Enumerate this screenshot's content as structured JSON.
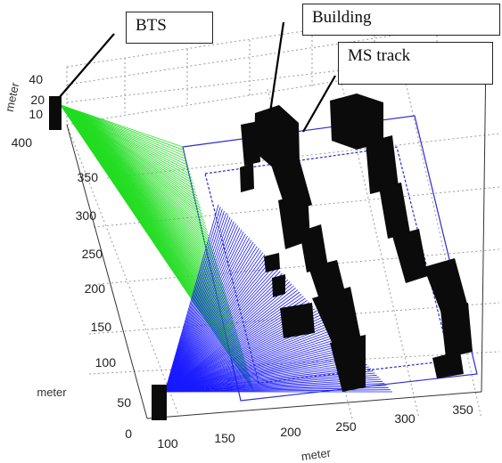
{
  "callouts": {
    "bts": "BTS",
    "building": "Building",
    "ms_track": "MS track"
  },
  "axes": {
    "x_title": "meter",
    "y_title": "meter",
    "z_title": "meter",
    "x_ticks": [
      "100",
      "150",
      "200",
      "250",
      "300",
      "350"
    ],
    "y_ticks": [
      "0",
      "50",
      "100",
      "150",
      "200",
      "250",
      "300",
      "350",
      "400"
    ],
    "z_ticks": [
      "10",
      "20",
      "40"
    ]
  },
  "colors": {
    "bts_rays_upper": "#22dd22",
    "bts_rays_lower": "#1a1aff",
    "ms_track": "#2b2bd0",
    "buildings": "#0b0b0b",
    "grid": "#9a9a9a"
  }
}
